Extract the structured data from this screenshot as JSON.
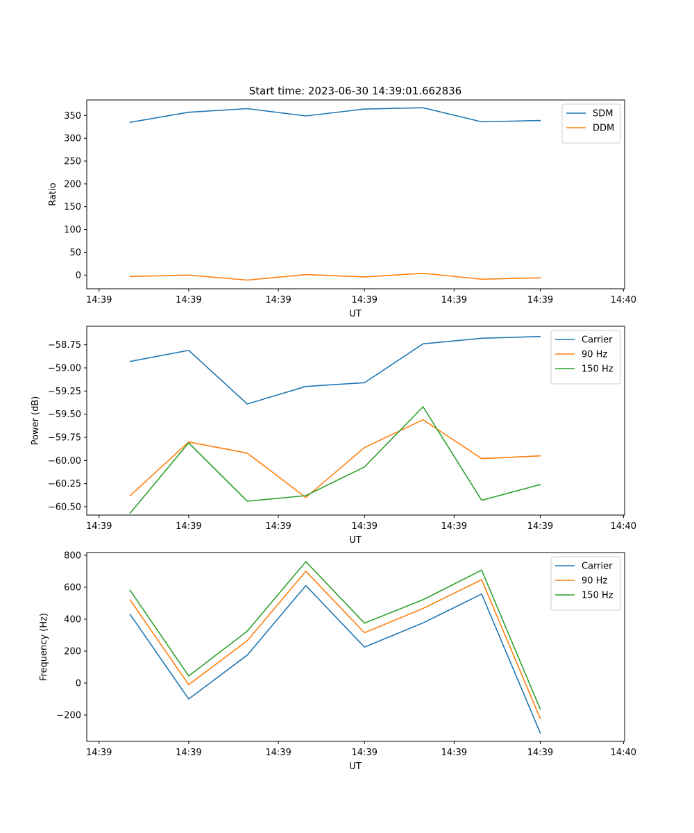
{
  "figure": {
    "title": "Start time: 2023-06-30 14:39:01.662836"
  },
  "colors": {
    "blue": "#1f77b4",
    "orange": "#ff7f0e",
    "green": "#2ca02c"
  },
  "chart_data": [
    {
      "type": "line",
      "name": "ratio-panel",
      "xlabel": "UT",
      "ylabel": "Ratio",
      "xticks": [
        "14:39",
        "14:39",
        "14:39",
        "14:39",
        "14:39",
        "14:39",
        "14:40"
      ],
      "yticks": [
        0,
        50,
        100,
        150,
        200,
        250,
        300,
        350
      ],
      "ylim": [
        -30,
        384
      ],
      "legend_position": "top-right",
      "x": [
        0,
        1,
        2,
        3,
        4,
        5,
        6,
        7
      ],
      "series": [
        {
          "name": "SDM",
          "color": "#1f77b4",
          "values": [
            335,
            357,
            365,
            349,
            364,
            367,
            336,
            339
          ]
        },
        {
          "name": "DDM",
          "color": "#ff7f0e",
          "values": [
            -3,
            0,
            -11,
            1,
            -4,
            4,
            -9,
            -6
          ]
        }
      ]
    },
    {
      "type": "line",
      "name": "power-panel",
      "xlabel": "UT",
      "ylabel": "Power (dB)",
      "xticks": [
        "14:39",
        "14:39",
        "14:39",
        "14:39",
        "14:39",
        "14:39",
        "14:40"
      ],
      "yticks": [
        "−58.75",
        "−59.00",
        "−59.25",
        "−59.50",
        "−59.75",
        "−60.00",
        "−60.25",
        "−60.50"
      ],
      "ytick_values": [
        -58.75,
        -59.0,
        -59.25,
        -59.5,
        -59.75,
        -60.0,
        -60.25,
        -60.5
      ],
      "ylim": [
        -60.59,
        -58.55
      ],
      "legend_position": "top-right",
      "x": [
        0,
        1,
        2,
        3,
        4,
        5,
        6,
        7
      ],
      "series": [
        {
          "name": "Carrier",
          "color": "#1f77b4",
          "values": [
            -58.93,
            -58.81,
            -59.39,
            -59.2,
            -59.16,
            -58.74,
            -58.68,
            -58.66
          ]
        },
        {
          "name": "90 Hz",
          "color": "#ff7f0e",
          "values": [
            -60.38,
            -59.8,
            -59.92,
            -60.4,
            -59.86,
            -59.56,
            -59.98,
            -59.95
          ]
        },
        {
          "name": "150 Hz",
          "color": "#2ca02c",
          "values": [
            -60.57,
            -59.81,
            -60.44,
            -60.38,
            -60.07,
            -59.42,
            -60.43,
            -60.26
          ]
        }
      ]
    },
    {
      "type": "line",
      "name": "frequency-panel",
      "xlabel": "UT",
      "ylabel": "Frequency (Hz)",
      "xticks": [
        "14:39",
        "14:39",
        "14:39",
        "14:39",
        "14:39",
        "14:39",
        "14:40"
      ],
      "yticks": [
        "−200",
        "0",
        "200",
        "400",
        "600",
        "800"
      ],
      "ytick_values": [
        -200,
        0,
        200,
        400,
        600,
        800
      ],
      "ylim": [
        -365,
        817
      ],
      "legend_position": "top-right",
      "x": [
        0,
        1,
        2,
        3,
        4,
        5,
        6,
        7
      ],
      "series": [
        {
          "name": "Carrier",
          "color": "#1f77b4",
          "values": [
            430,
            -100,
            175,
            610,
            225,
            377,
            557,
            -312
          ]
        },
        {
          "name": "90 Hz",
          "color": "#ff7f0e",
          "values": [
            520,
            -10,
            265,
            700,
            315,
            467,
            647,
            -222
          ]
        },
        {
          "name": "150 Hz",
          "color": "#2ca02c",
          "values": [
            580,
            45,
            325,
            760,
            375,
            522,
            707,
            -162
          ]
        }
      ]
    }
  ]
}
